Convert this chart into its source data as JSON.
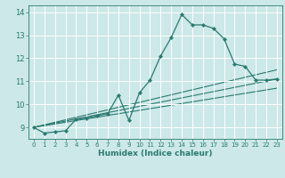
{
  "xlabel": "Humidex (Indice chaleur)",
  "bg_color": "#cce8e8",
  "grid_color": "#ffffff",
  "line_color": "#2a7a70",
  "xlim": [
    -0.5,
    23.5
  ],
  "ylim": [
    8.5,
    14.3
  ],
  "yticks": [
    9,
    10,
    11,
    12,
    13,
    14
  ],
  "xticks": [
    0,
    1,
    2,
    3,
    4,
    5,
    6,
    7,
    8,
    9,
    10,
    11,
    12,
    13,
    14,
    15,
    16,
    17,
    18,
    19,
    20,
    21,
    22,
    23
  ],
  "main_line": {
    "x": [
      0,
      1,
      2,
      3,
      4,
      5,
      6,
      7,
      8,
      9,
      10,
      11,
      12,
      13,
      14,
      15,
      16,
      17,
      18,
      19,
      20,
      21,
      22,
      23
    ],
    "y": [
      9.0,
      8.75,
      8.8,
      8.85,
      9.35,
      9.4,
      9.5,
      9.6,
      10.4,
      9.3,
      10.5,
      11.05,
      12.1,
      12.9,
      13.9,
      13.45,
      13.45,
      13.3,
      12.85,
      11.75,
      11.65,
      11.05,
      11.05,
      11.1
    ]
  },
  "ref_lines": [
    {
      "x": [
        0,
        23
      ],
      "y": [
        9.0,
        11.1
      ]
    },
    {
      "x": [
        0,
        23
      ],
      "y": [
        9.0,
        11.5
      ]
    },
    {
      "x": [
        0,
        23
      ],
      "y": [
        9.0,
        10.7
      ]
    }
  ]
}
